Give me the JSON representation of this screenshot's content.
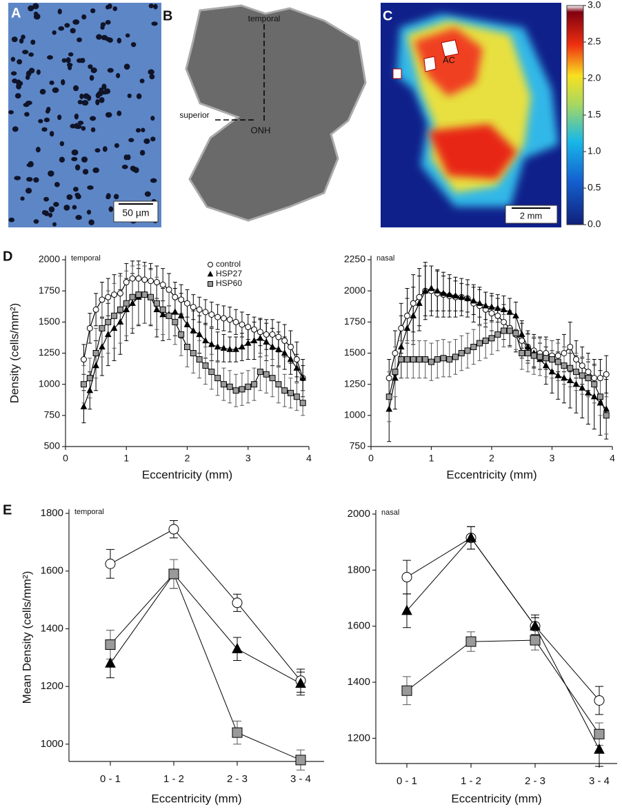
{
  "panels": {
    "A": {
      "label": "A",
      "scale_bar": "50 µm"
    },
    "B": {
      "label": "B",
      "annotations": [
        "temporal",
        "superior",
        "ONH"
      ]
    },
    "C": {
      "label": "C",
      "annotations": [
        "AC"
      ],
      "scale_bar": "2 mm",
      "colorbar": {
        "lim": [
          0,
          3
        ],
        "ticks": [
          {
            "value": 0,
            "label": "0.0"
          },
          {
            "value": 0.5,
            "label": "0.5"
          },
          {
            "value": 1,
            "label": "1.0"
          },
          {
            "value": 1.5,
            "label": "1.5"
          },
          {
            "value": 2,
            "label": "2.0"
          },
          {
            "value": 2.5,
            "label": "2.5"
          },
          {
            "value": 3,
            "label": "3.0"
          }
        ]
      }
    }
  },
  "chart_data": [
    {
      "type": "line",
      "panel_label": "D",
      "subtitle": "temporal",
      "x_label": "Eccentricity (mm)",
      "y_label": "Density (cells/mm²)",
      "legend": true,
      "x": [
        0.3,
        0.4,
        0.5,
        0.6,
        0.7,
        0.8,
        0.9,
        1.0,
        1.1,
        1.2,
        1.3,
        1.4,
        1.5,
        1.6,
        1.7,
        1.8,
        1.9,
        2.0,
        2.1,
        2.2,
        2.3,
        2.4,
        2.5,
        2.6,
        2.7,
        2.8,
        2.9,
        3.0,
        3.1,
        3.2,
        3.3,
        3.4,
        3.5,
        3.6,
        3.7,
        3.8,
        3.9
      ],
      "xlim": [
        0,
        4
      ],
      "xticks": [
        0,
        1,
        2,
        3,
        4
      ],
      "ylim": [
        500,
        2000
      ],
      "yticks": [
        500,
        750,
        1000,
        1250,
        1500,
        1750,
        2000
      ],
      "series": [
        {
          "name": "control",
          "color": "#ffffff",
          "marker": "circle",
          "values": [
            1200,
            1450,
            1600,
            1680,
            1700,
            1720,
            1730,
            1820,
            1850,
            1850,
            1840,
            1830,
            1820,
            1800,
            1760,
            1700,
            1680,
            1650,
            1620,
            1600,
            1580,
            1560,
            1540,
            1530,
            1520,
            1500,
            1480,
            1460,
            1440,
            1420,
            1400,
            1400,
            1380,
            1350,
            1300,
            1200,
            1050
          ],
          "errors": [
            120,
            120,
            130,
            140,
            150,
            160,
            160,
            150,
            140,
            140,
            140,
            140,
            130,
            130,
            130,
            120,
            120,
            110,
            100,
            100,
            100,
            100,
            100,
            100,
            100,
            100,
            100,
            100,
            100,
            110,
            120,
            120,
            120,
            130,
            130,
            140,
            150
          ]
        },
        {
          "name": "HSP27",
          "color": "#000000",
          "marker": "triangle",
          "values": [
            820,
            950,
            1150,
            1300,
            1400,
            1450,
            1500,
            1600,
            1650,
            1700,
            1720,
            1700,
            1600,
            1560,
            1560,
            1580,
            1550,
            1480,
            1430,
            1400,
            1350,
            1320,
            1300,
            1290,
            1280,
            1280,
            1300,
            1330,
            1350,
            1370,
            1340,
            1300,
            1280,
            1250,
            1200,
            1130,
            1050
          ],
          "errors": [
            130,
            150,
            200,
            230,
            250,
            260,
            260,
            250,
            240,
            230,
            230,
            230,
            220,
            210,
            200,
            190,
            180,
            170,
            160,
            150,
            140,
            130,
            120,
            110,
            100,
            100,
            110,
            130,
            150,
            150,
            150,
            150,
            140,
            130,
            120,
            110,
            100
          ]
        },
        {
          "name": "HSP60",
          "color": "#9a9a9a",
          "marker": "square",
          "values": [
            1000,
            1050,
            1250,
            1450,
            1500,
            1550,
            1600,
            1650,
            1700,
            1720,
            1720,
            1700,
            1650,
            1600,
            1550,
            1500,
            1400,
            1300,
            1250,
            1200,
            1150,
            1100,
            1050,
            1000,
            980,
            950,
            960,
            980,
            1000,
            1100,
            1080,
            1050,
            1000,
            950,
            930,
            900,
            850
          ],
          "errors": [
            150,
            160,
            200,
            230,
            250,
            260,
            270,
            260,
            250,
            240,
            230,
            220,
            210,
            200,
            190,
            180,
            170,
            160,
            160,
            150,
            150,
            140,
            140,
            130,
            130,
            130,
            130,
            130,
            130,
            150,
            150,
            150,
            150,
            130,
            120,
            110,
            100
          ]
        }
      ]
    },
    {
      "type": "line",
      "subtitle": "nasal",
      "x_label": "Eccentricity (mm)",
      "legend": false,
      "x": [
        0.3,
        0.4,
        0.5,
        0.6,
        0.7,
        0.8,
        0.9,
        1.0,
        1.1,
        1.2,
        1.3,
        1.4,
        1.5,
        1.6,
        1.7,
        1.8,
        1.9,
        2.0,
        2.1,
        2.2,
        2.3,
        2.4,
        2.5,
        2.6,
        2.7,
        2.8,
        2.9,
        3.0,
        3.1,
        3.2,
        3.3,
        3.4,
        3.5,
        3.6,
        3.7,
        3.8,
        3.9
      ],
      "xlim": [
        0,
        4
      ],
      "xticks": [
        0,
        1,
        2,
        3,
        4
      ],
      "ylim": [
        750,
        2250
      ],
      "yticks": [
        750,
        1000,
        1250,
        1500,
        1750,
        2000,
        2250
      ],
      "series": [
        {
          "name": "control",
          "color": "#ffffff",
          "marker": "circle",
          "values": [
            1300,
            1500,
            1700,
            1800,
            1900,
            1950,
            2000,
            2000,
            1980,
            1970,
            1960,
            1950,
            1950,
            1940,
            1900,
            1880,
            1850,
            1820,
            1800,
            1750,
            1700,
            1650,
            1600,
            1550,
            1520,
            1500,
            1500,
            1480,
            1480,
            1500,
            1550,
            1450,
            1400,
            1350,
            1300,
            1300,
            1330
          ],
          "errors": [
            150,
            180,
            200,
            220,
            230,
            230,
            230,
            200,
            190,
            180,
            170,
            160,
            150,
            150,
            150,
            150,
            140,
            140,
            140,
            140,
            140,
            140,
            140,
            130,
            130,
            130,
            130,
            120,
            130,
            150,
            200,
            150,
            150,
            150,
            150,
            150,
            150
          ]
        },
        {
          "name": "HSP27",
          "color": "#000000",
          "marker": "triangle",
          "values": [
            1050,
            1300,
            1550,
            1700,
            1800,
            1900,
            2000,
            2020,
            2000,
            1980,
            1970,
            1960,
            1950,
            1940,
            1920,
            1900,
            1880,
            1870,
            1860,
            1850,
            1830,
            1800,
            1650,
            1550,
            1500,
            1450,
            1400,
            1350,
            1320,
            1300,
            1280,
            1250,
            1220,
            1180,
            1150,
            1100,
            1050
          ],
          "errors": [
            260,
            250,
            250,
            240,
            230,
            220,
            200,
            180,
            160,
            140,
            130,
            120,
            110,
            110,
            110,
            110,
            110,
            110,
            110,
            110,
            110,
            110,
            110,
            110,
            120,
            130,
            150,
            170,
            190,
            200,
            220,
            230,
            240,
            250,
            260,
            260,
            240
          ]
        },
        {
          "name": "HSP60",
          "color": "#9a9a9a",
          "marker": "square",
          "values": [
            1150,
            1350,
            1450,
            1450,
            1450,
            1450,
            1450,
            1430,
            1450,
            1460,
            1450,
            1470,
            1500,
            1520,
            1550,
            1580,
            1600,
            1620,
            1650,
            1680,
            1680,
            1660,
            1500,
            1500,
            1480,
            1470,
            1460,
            1450,
            1430,
            1400,
            1380,
            1350,
            1320,
            1300,
            1250,
            1150,
            1000
          ],
          "errors": [
            200,
            200,
            150,
            150,
            150,
            150,
            150,
            150,
            150,
            150,
            140,
            140,
            140,
            140,
            140,
            140,
            140,
            130,
            130,
            130,
            130,
            130,
            130,
            150,
            150,
            150,
            150,
            150,
            150,
            150,
            150,
            150,
            150,
            150,
            150,
            150,
            150
          ]
        }
      ]
    },
    {
      "type": "line",
      "panel_label": "E",
      "subtitle": "temporal",
      "x_label": "Eccentricity (mm)",
      "y_label": "Mean Density (cells/mm²)",
      "legend": false,
      "categories": [
        "0 - 1",
        "1 - 2",
        "2 - 3",
        "3 - 4"
      ],
      "ylim": [
        940,
        1800
      ],
      "yticks": [
        1000,
        1200,
        1400,
        1600,
        1800
      ],
      "series": [
        {
          "name": "control",
          "color": "#ffffff",
          "marker": "circle",
          "values": [
            1625,
            1745,
            1490,
            1220
          ],
          "errors": [
            50,
            30,
            30,
            40
          ]
        },
        {
          "name": "HSP27",
          "color": "#000000",
          "marker": "triangle",
          "values": [
            1280,
            1590,
            1330,
            1210
          ],
          "errors": [
            50,
            50,
            40,
            40
          ]
        },
        {
          "name": "HSP60",
          "color": "#9a9a9a",
          "marker": "square",
          "values": [
            1345,
            1590,
            1040,
            945
          ],
          "errors": [
            50,
            50,
            40,
            35
          ]
        }
      ]
    },
    {
      "type": "line",
      "subtitle": "nasal",
      "x_label": "Eccentricity (mm)",
      "legend": false,
      "categories": [
        "0 - 1",
        "1 - 2",
        "2 - 3",
        "3 - 4"
      ],
      "ylim": [
        1110,
        2000
      ],
      "yticks": [
        1200,
        1400,
        1600,
        1800,
        2000
      ],
      "series": [
        {
          "name": "control",
          "color": "#ffffff",
          "marker": "circle",
          "values": [
            1775,
            1915,
            1600,
            1335
          ],
          "errors": [
            60,
            40,
            30,
            50
          ]
        },
        {
          "name": "HSP27",
          "color": "#000000",
          "marker": "triangle",
          "values": [
            1655,
            1915,
            1600,
            1160
          ],
          "errors": [
            60,
            40,
            40,
            60
          ]
        },
        {
          "name": "HSP60",
          "color": "#9a9a9a",
          "marker": "square",
          "values": [
            1370,
            1545,
            1550,
            1215
          ],
          "errors": [
            50,
            35,
            35,
            40
          ]
        }
      ]
    }
  ]
}
